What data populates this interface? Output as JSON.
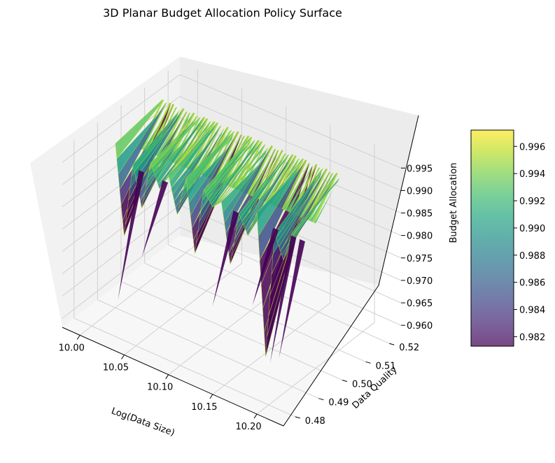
{
  "chart_data": {
    "type": "surface3d",
    "title": "3D Planar Budget Allocation Policy Surface",
    "xlabel": "Log(Data Size)",
    "ylabel": "Data Quality",
    "zlabel": "Budget Allocation",
    "xlim": [
      9.98,
      10.23
    ],
    "ylim": [
      0.475,
      0.525
    ],
    "zlim": [
      0.958,
      0.998
    ],
    "x_ticks": [
      "10.00",
      "10.05",
      "10.10",
      "10.15",
      "10.20"
    ],
    "x_tick_values": [
      10.0,
      10.05,
      10.1,
      10.15,
      10.2
    ],
    "y_ticks": [
      "0.48",
      "0.49",
      "0.50",
      "0.51",
      "0.52"
    ],
    "y_tick_values": [
      0.48,
      0.49,
      0.5,
      0.51,
      0.52
    ],
    "z_ticks": [
      "0.960",
      "0.965",
      "0.970",
      "0.975",
      "0.980",
      "0.985",
      "0.990",
      "0.995"
    ],
    "z_tick_values": [
      0.96,
      0.965,
      0.97,
      0.975,
      0.98,
      0.985,
      0.99,
      0.995
    ],
    "colorbar": {
      "colormap": "viridis",
      "range": [
        0.9813,
        0.9972
      ],
      "ticks": [
        "0.982",
        "0.984",
        "0.986",
        "0.988",
        "0.990",
        "0.992",
        "0.994",
        "0.996"
      ],
      "tick_values": [
        0.982,
        0.984,
        0.986,
        0.988,
        0.99,
        0.992,
        0.994,
        0.996
      ]
    },
    "surface": {
      "x_range": [
        10.0,
        10.2
      ],
      "y_value": 0.5,
      "typical_z_range": [
        0.985,
        0.997
      ],
      "x": [
        10.0,
        10.01,
        10.02,
        10.03,
        10.04,
        10.05,
        10.06,
        10.07,
        10.08,
        10.09,
        10.1,
        10.11,
        10.12,
        10.13,
        10.14,
        10.15,
        10.16,
        10.17,
        10.18,
        10.19,
        10.2
      ],
      "z": [
        0.995,
        0.975,
        0.992,
        0.983,
        0.994,
        0.989,
        0.993,
        0.985,
        0.994,
        0.978,
        0.993,
        0.99,
        0.992,
        0.979,
        0.991,
        0.987,
        0.993,
        0.962,
        0.99,
        0.985,
        0.992
      ],
      "spikes": [
        {
          "x": 10.003,
          "z": 0.96
        },
        {
          "x": 10.03,
          "z": 0.972
        },
        {
          "x": 10.11,
          "z": 0.968
        },
        {
          "x": 10.155,
          "z": 0.972
        },
        {
          "x": 10.175,
          "z": 0.961
        },
        {
          "x": 10.185,
          "z": 0.963
        }
      ]
    }
  }
}
